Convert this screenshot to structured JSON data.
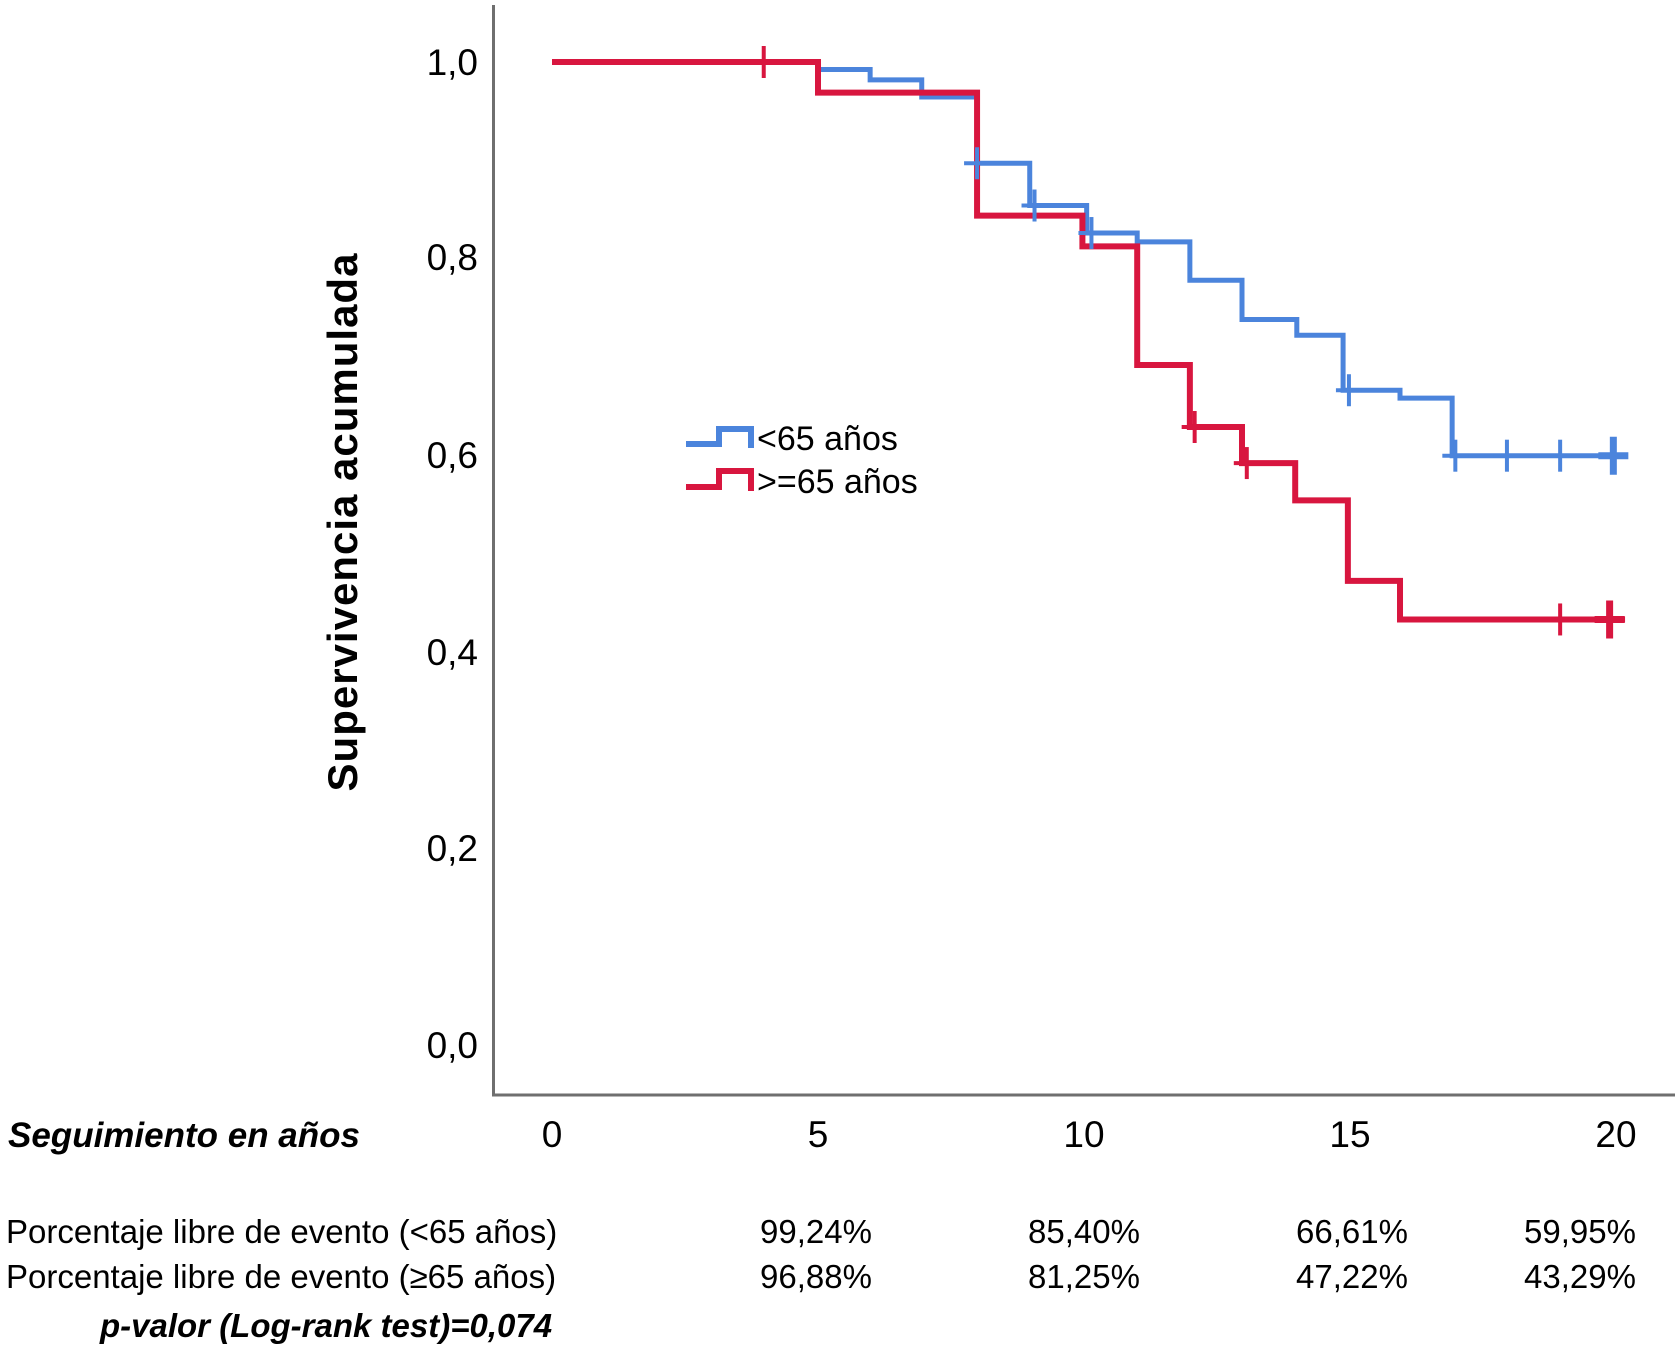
{
  "colors": {
    "blue": "#4b84dc",
    "red": "#d8163f",
    "axis": "#6f6f6f",
    "text": "#000000",
    "background": "#ffffff"
  },
  "y_axis": {
    "title": "Supervivencia acumulada",
    "ticks": [
      "1,0",
      "0,8",
      "0,6",
      "0,4",
      "0,2",
      "0,0"
    ],
    "tick_values": [
      1.0,
      0.8,
      0.6,
      0.4,
      0.2,
      0.0
    ]
  },
  "x_axis": {
    "title": "Seguimiento en años",
    "ticks": [
      "0",
      "5",
      "10",
      "15",
      "20"
    ],
    "tick_values": [
      0,
      5,
      10,
      15,
      20
    ]
  },
  "legend": {
    "items": [
      {
        "label": "<65 años",
        "color": "#4b84dc"
      },
      {
        "label": ">=65 años",
        "color": "#d8163f"
      }
    ]
  },
  "table": {
    "rows": [
      {
        "label": "Porcentaje libre de evento (<65 años)",
        "values": [
          "99,24%",
          "85,40%",
          "66,61%",
          "59,95%"
        ]
      },
      {
        "label": "Porcentaje libre de evento (≥65 años)",
        "values": [
          "96,88%",
          "81,25%",
          "47,22%",
          "43,29%"
        ]
      }
    ],
    "p_value_note": "p-valor (Log-rank test)=0,074"
  },
  "chart_data": {
    "type": "line",
    "subtype": "kaplan-meier-step",
    "title": "",
    "xlabel": "Seguimiento en años",
    "ylabel": "Supervivencia acumulada",
    "xlim": [
      0,
      20
    ],
    "ylim": [
      0.0,
      1.0
    ],
    "x_ticks": [
      0,
      5,
      10,
      15,
      20
    ],
    "y_ticks": [
      0.0,
      0.2,
      0.4,
      0.6,
      0.8,
      1.0
    ],
    "grid": false,
    "legend_position": "inside-left-middle",
    "series": [
      {
        "name": "<65 años",
        "color": "#4b84dc",
        "stroke_width": 5,
        "t_start": 0,
        "t_end": 20.17,
        "start_value": 1.0,
        "steps": [
          [
            5.0,
            0.9924
          ],
          [
            5.98,
            0.9818
          ],
          [
            6.95,
            0.9644
          ],
          [
            7.99,
            0.897
          ],
          [
            8.98,
            0.854
          ],
          [
            10.05,
            0.826
          ],
          [
            11.0,
            0.817
          ],
          [
            11.99,
            0.778
          ],
          [
            12.97,
            0.738
          ],
          [
            14.0,
            0.722
          ],
          [
            14.87,
            0.6661
          ],
          [
            15.94,
            0.658
          ],
          [
            16.92,
            0.5995
          ]
        ],
        "censors": [
          [
            7.99,
            0.897,
            0
          ],
          [
            9.07,
            0.854,
            0
          ],
          [
            10.14,
            0.826,
            0
          ],
          [
            14.98,
            0.6661,
            0
          ],
          [
            16.98,
            0.5995,
            0
          ],
          [
            17.95,
            0.5995,
            0
          ],
          [
            18.95,
            0.5995,
            0
          ],
          [
            19.95,
            0.5995,
            1
          ]
        ]
      },
      {
        "name": ">=65 años",
        "color": "#d8163f",
        "stroke_width": 6,
        "t_start": 0,
        "t_end": 20.17,
        "start_value": 1.0,
        "steps": [
          [
            5.0,
            0.9688
          ],
          [
            7.99,
            0.84375
          ],
          [
            9.97,
            0.8125
          ],
          [
            11.0,
            0.6918
          ],
          [
            11.99,
            0.6287
          ],
          [
            12.97,
            0.592
          ],
          [
            13.97,
            0.554
          ],
          [
            14.96,
            0.4722
          ],
          [
            15.94,
            0.4329
          ]
        ],
        "censors": [
          [
            3.98,
            1.0,
            0
          ],
          [
            12.08,
            0.6287,
            0
          ],
          [
            13.06,
            0.592,
            0
          ],
          [
            18.95,
            0.4329,
            0
          ],
          [
            19.88,
            0.4329,
            1
          ]
        ]
      }
    ],
    "summary": {
      "timepoints_years": [
        5,
        10,
        15,
        20
      ],
      "rows": [
        {
          "group": "<65 años",
          "event_free_percent": [
            "99,24%",
            "85,40%",
            "66,61%",
            "59,95%"
          ]
        },
        {
          "group": ">=65 años",
          "event_free_percent": [
            "96,88%",
            "81,25%",
            "47,22%",
            "43,29%"
          ]
        }
      ],
      "test": "Log-rank",
      "p_value": "0,074"
    }
  }
}
